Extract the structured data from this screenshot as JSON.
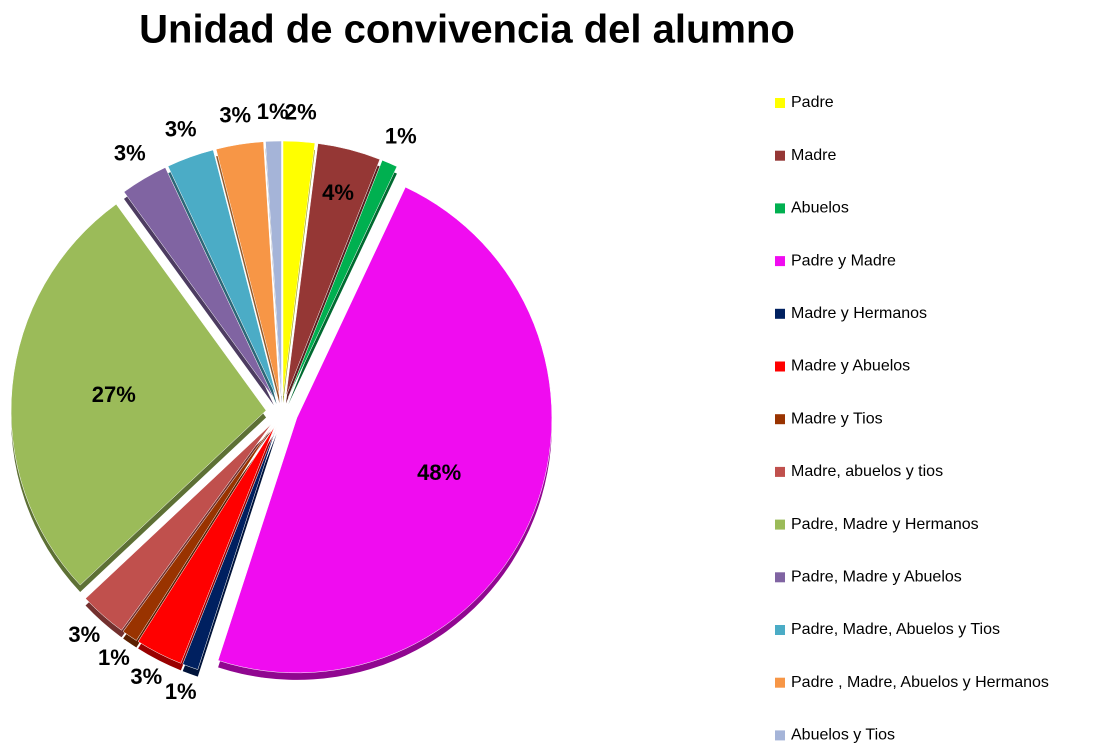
{
  "chart_data": {
    "type": "pie",
    "title": "Unidad de convivencia del alumno",
    "categories": [
      "Padre",
      "Madre",
      "Abuelos",
      "Padre y Madre",
      "Madre y Hermanos",
      "Madre y Abuelos",
      "Madre y Tios",
      "Madre, abuelos y tios",
      "Padre, Madre y Hermanos",
      "Padre, Madre y Abuelos",
      "Padre, Madre, Abuelos y Tios",
      "Padre , Madre, Abuelos y Hermanos",
      "Abuelos y Tios"
    ],
    "values": [
      2,
      4,
      1,
      48,
      1,
      3,
      1,
      3,
      27,
      3,
      3,
      3,
      1
    ],
    "value_labels": [
      "2%",
      "4%",
      "1%",
      "48%",
      "1%",
      "3%",
      "1%",
      "3%",
      "27%",
      "3%",
      "3%",
      "3%",
      "1%"
    ],
    "colors": [
      "#ffff00",
      "#953735",
      "#00b050",
      "#f00cf0",
      "#002060",
      "#ff0000",
      "#993300",
      "#c0504d",
      "#9bbb59",
      "#8064a2",
      "#4bacc6",
      "#f79646",
      "#a5b4d8"
    ],
    "legend": "right"
  }
}
